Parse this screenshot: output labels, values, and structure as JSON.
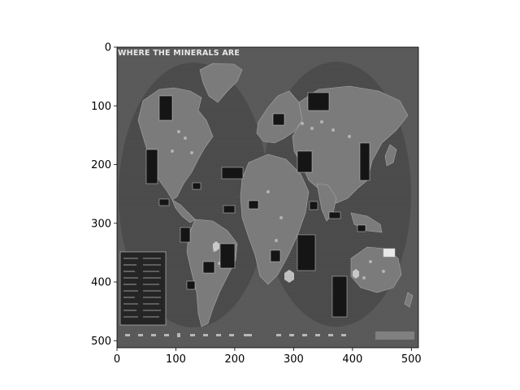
{
  "map": {
    "title": "WHERE THE MINERALS ARE",
    "colors": {
      "background": "#ffffff",
      "map_frame": "#5a5a5a",
      "ocean": "#494949",
      "land": "#7c7c7c",
      "label_box": "#151515"
    }
  },
  "axes": {
    "x_ticks": [
      "0",
      "100",
      "200",
      "300",
      "400",
      "500"
    ],
    "y_ticks": [
      "0",
      "100",
      "200",
      "300",
      "400",
      "500"
    ],
    "xlim": [
      0,
      512
    ],
    "ylim": [
      512,
      0
    ]
  }
}
